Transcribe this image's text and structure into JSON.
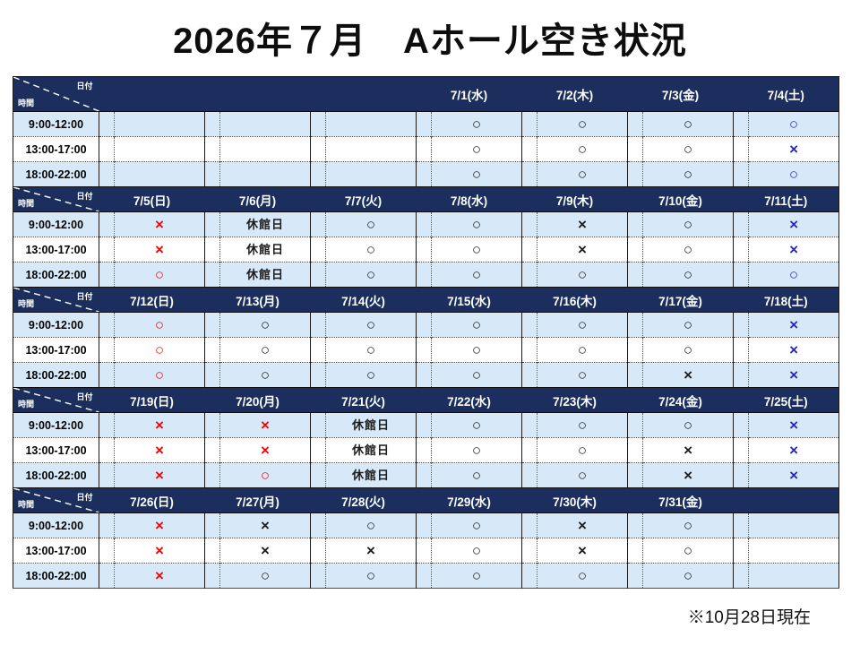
{
  "title": "2026年７月　Aホール空き状況",
  "footer_note": "※10月28日現在",
  "table": {
    "corner": {
      "date_label": "日付",
      "time_label": "時間"
    },
    "time_slots": [
      "9:00-12:00",
      "13:00-17:00",
      "18:00-22:00"
    ],
    "closed_label": "休館日",
    "marks": {
      "available": "○",
      "unavailable": "×"
    },
    "colors": {
      "header_bg": "#1c2e5e",
      "row_band_blue": "#d7e8f8",
      "mark_black": "#1c1c1c",
      "mark_red": "#ff0000",
      "mark_blue": "#2525cd"
    },
    "weeks": [
      {
        "dates": [
          "",
          "",
          "",
          "7/1(水)",
          "7/2(木)",
          "7/3(金)",
          "7/4(土)"
        ],
        "cells": [
          [
            "",
            "",
            "",
            "○|black",
            "○|black",
            "○|black",
            "○|blue"
          ],
          [
            "",
            "",
            "",
            "○|black",
            "○|black",
            "○|black",
            "×|blue"
          ],
          [
            "",
            "",
            "",
            "○|black",
            "○|black",
            "○|black",
            "○|blue"
          ]
        ]
      },
      {
        "dates": [
          "7/5(日)",
          "7/6(月)",
          "7/7(火)",
          "7/8(水)",
          "7/9(木)",
          "7/10(金)",
          "7/11(土)"
        ],
        "cells": [
          [
            "×|red",
            "休館日|black",
            "○|black",
            "○|black",
            "×|black",
            "○|black",
            "×|blue"
          ],
          [
            "×|red",
            "休館日|black",
            "○|black",
            "○|black",
            "×|black",
            "○|black",
            "×|blue"
          ],
          [
            "○|red",
            "休館日|black",
            "○|black",
            "○|black",
            "○|black",
            "○|black",
            "○|blue"
          ]
        ]
      },
      {
        "dates": [
          "7/12(日)",
          "7/13(月)",
          "7/14(火)",
          "7/15(水)",
          "7/16(木)",
          "7/17(金)",
          "7/18(土)"
        ],
        "cells": [
          [
            "○|red",
            "○|black",
            "○|black",
            "○|black",
            "○|black",
            "○|black",
            "×|blue"
          ],
          [
            "○|red",
            "○|black",
            "○|black",
            "○|black",
            "○|black",
            "○|black",
            "×|blue"
          ],
          [
            "○|red",
            "○|black",
            "○|black",
            "○|black",
            "○|black",
            "×|black",
            "×|blue"
          ]
        ]
      },
      {
        "dates": [
          "7/19(日)",
          "7/20(月)",
          "7/21(火)",
          "7/22(水)",
          "7/23(木)",
          "7/24(金)",
          "7/25(土)"
        ],
        "cells": [
          [
            "×|red",
            "×|red",
            "休館日|black",
            "○|black",
            "○|black",
            "○|black",
            "×|blue"
          ],
          [
            "×|red",
            "×|red",
            "休館日|black",
            "○|black",
            "○|black",
            "×|black",
            "×|blue"
          ],
          [
            "×|red",
            "○|red",
            "休館日|black",
            "○|black",
            "○|black",
            "×|black",
            "×|blue"
          ]
        ]
      },
      {
        "dates": [
          "7/26(日)",
          "7/27(月)",
          "7/28(火)",
          "7/29(水)",
          "7/30(木)",
          "7/31(金)",
          ""
        ],
        "cells": [
          [
            "×|red",
            "×|black",
            "○|black",
            "○|black",
            "×|black",
            "○|black",
            ""
          ],
          [
            "×|red",
            "×|black",
            "×|black",
            "○|black",
            "×|black",
            "○|black",
            ""
          ],
          [
            "×|red",
            "○|black",
            "○|black",
            "○|black",
            "○|black",
            "○|black",
            ""
          ]
        ]
      }
    ]
  }
}
